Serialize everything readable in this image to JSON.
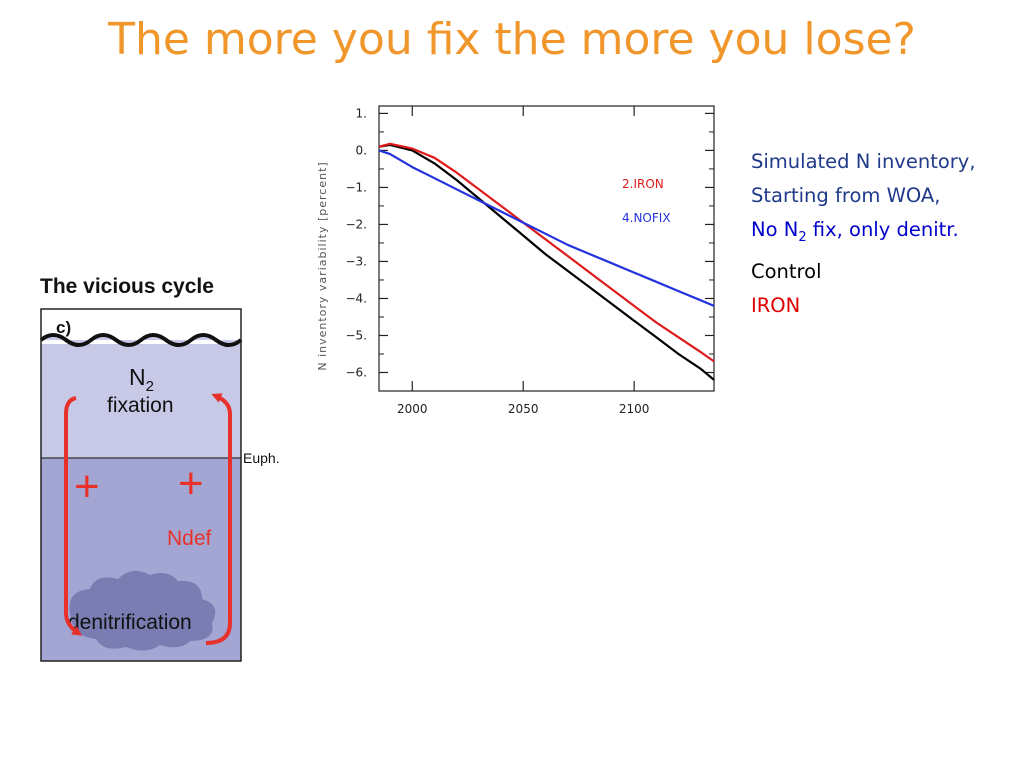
{
  "slide": {
    "title": "The more you fix the more you lose?"
  },
  "legend_text": {
    "line1": "Simulated N inventory,",
    "line2": "Starting from WOA,",
    "line3_prefix": "No N",
    "line3_sub": "2",
    "line3_suffix": " fix, only denitr.",
    "line4": "Control",
    "line5": "IRON",
    "colors": {
      "line1": "#1f3a8a",
      "line2": "#1f3a8a",
      "line3": "#0000cc",
      "line4": "#000000",
      "line5": "#e00000"
    }
  },
  "diagram": {
    "title": "The vicious cycle",
    "panel_label": "c)",
    "n2_text": "N",
    "n2_sub": "2",
    "fixation_text": "fixation",
    "euph_label": "Euph.",
    "plus1": "+",
    "plus2": "+",
    "ndef_label": "Ndef",
    "denit_label": "denitrification"
  },
  "chart_data": {
    "type": "line",
    "title": "",
    "xlabel": "",
    "ylabel": "N inventory variability [percent]",
    "xlim": [
      1985,
      2136
    ],
    "ylim": [
      -6.5,
      1.2
    ],
    "x_ticks": [
      2000,
      2050,
      2100
    ],
    "x_tick_labels": [
      "2000",
      "2050",
      "2100"
    ],
    "y_ticks": [
      1,
      0,
      -1,
      -2,
      -3,
      -4,
      -5,
      -6
    ],
    "y_tick_labels": [
      "1.",
      "0.",
      "−1.",
      "−2.",
      "−3.",
      "−4.",
      "−5.",
      "−6."
    ],
    "grid": false,
    "series": [
      {
        "label": "Control",
        "color": "#000000",
        "x": [
          1985,
          1990,
          2000,
          2010,
          2020,
          2030,
          2040,
          2050,
          2060,
          2070,
          2080,
          2090,
          2100,
          2110,
          2120,
          2130,
          2136
        ],
        "y": [
          0.1,
          0.15,
          0.0,
          -0.35,
          -0.8,
          -1.3,
          -1.8,
          -2.3,
          -2.8,
          -3.25,
          -3.7,
          -4.15,
          -4.6,
          -5.05,
          -5.5,
          -5.9,
          -6.2
        ]
      },
      {
        "label": "2.IRON",
        "color": "#e01a1a",
        "x": [
          1985,
          1990,
          2000,
          2010,
          2020,
          2030,
          2040,
          2050,
          2060,
          2070,
          2080,
          2090,
          2100,
          2110,
          2120,
          2130,
          2136
        ],
        "y": [
          0.1,
          0.18,
          0.05,
          -0.2,
          -0.6,
          -1.05,
          -1.5,
          -1.95,
          -2.4,
          -2.85,
          -3.3,
          -3.75,
          -4.2,
          -4.65,
          -5.05,
          -5.45,
          -5.7
        ]
      },
      {
        "label": "4.NOFIX",
        "color": "#2233dd",
        "x": [
          1985,
          1990,
          2000,
          2010,
          2020,
          2030,
          2040,
          2050,
          2060,
          2070,
          2080,
          2090,
          2100,
          2110,
          2120,
          2130,
          2136
        ],
        "y": [
          0.0,
          -0.1,
          -0.45,
          -0.75,
          -1.05,
          -1.35,
          -1.65,
          -1.95,
          -2.25,
          -2.55,
          -2.8,
          -3.05,
          -3.3,
          -3.55,
          -3.8,
          -4.05,
          -4.2
        ]
      }
    ]
  }
}
